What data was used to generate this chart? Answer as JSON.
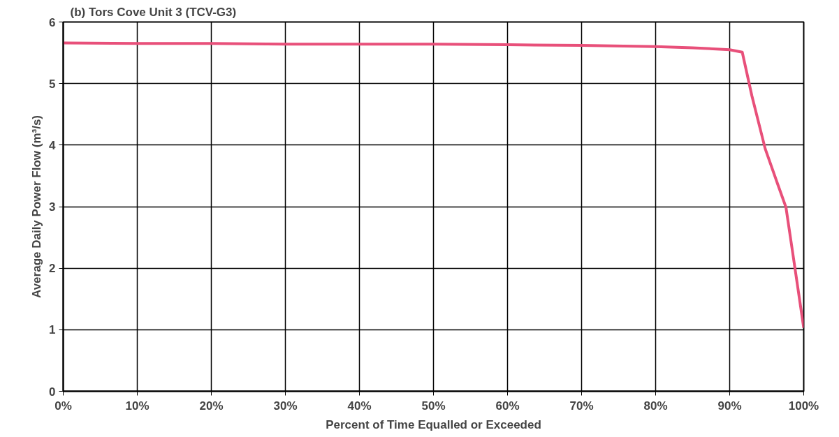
{
  "chart_data": {
    "type": "line",
    "title": "(b) Tors Cove Unit 3 (TCV-G3)",
    "xlabel": "Percent of Time Equalled or Exceeded",
    "ylabel": "Average Daily Power Flow (m³/s)",
    "x": [
      0,
      10,
      20,
      30,
      40,
      50,
      60,
      70,
      80,
      85,
      90,
      91.7,
      93,
      94.8,
      96.5,
      97.6,
      98.5,
      100
    ],
    "series": [
      {
        "color": "#e8507a",
        "values": [
          5.66,
          5.65,
          5.65,
          5.64,
          5.64,
          5.64,
          5.63,
          5.62,
          5.6,
          5.58,
          5.55,
          5.51,
          4.8,
          3.94,
          3.36,
          2.99,
          2.26,
          1.03
        ]
      }
    ],
    "xlim": [
      0,
      100
    ],
    "xticks": [
      {
        "value": 0,
        "label": "0%"
      },
      {
        "value": 10,
        "label": "10%"
      },
      {
        "value": 20,
        "label": "20%"
      },
      {
        "value": 30,
        "label": "30%"
      },
      {
        "value": 40,
        "label": "40%"
      },
      {
        "value": 50,
        "label": "50%"
      },
      {
        "value": 60,
        "label": "60%"
      },
      {
        "value": 70,
        "label": "70%"
      },
      {
        "value": 80,
        "label": "80%"
      },
      {
        "value": 90,
        "label": "90%"
      },
      {
        "value": 100,
        "label": "100%"
      }
    ],
    "ylim": [
      0,
      6
    ],
    "yticks": [
      0,
      1,
      2,
      3,
      4,
      5,
      6
    ],
    "grid": true,
    "marker": "none",
    "line_style": "solid"
  }
}
